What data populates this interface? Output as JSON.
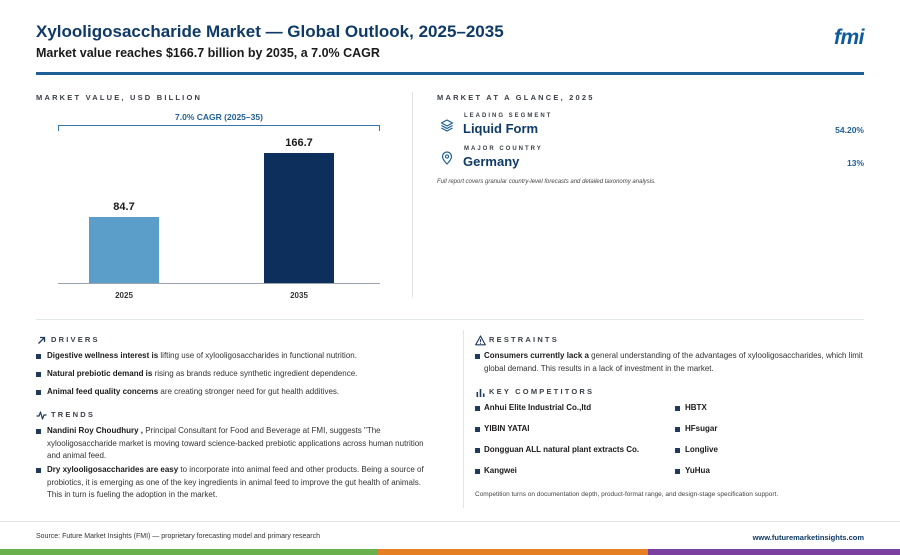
{
  "header": {
    "title": "Xylooligosaccharide Market — Global Outlook, 2025–2035",
    "subtitle": "Market value reaches $166.7 billion by 2035, a 7.0% CAGR",
    "logo": "fmi"
  },
  "chart_section": {
    "label": "MARKET VALUE, USD BILLION",
    "cagr_label": "7.0% CAGR (2025–35)"
  },
  "chart_data": {
    "type": "bar",
    "categories": [
      "2025",
      "2035"
    ],
    "values": [
      84.7,
      166.7
    ],
    "value_labels": [
      "84.7",
      "166.7"
    ],
    "title": "",
    "xlabel": "",
    "ylabel": "",
    "ylim": [
      0,
      180
    ],
    "colors": [
      "#5b9ec9",
      "#0c2f5c"
    ],
    "grid": false
  },
  "glance": {
    "label": "MARKET AT A GLANCE, 2025",
    "items": [
      {
        "kicker": "LEADING SEGMENT",
        "name": "Liquid Form",
        "value": "54.20%",
        "icon": "layers-icon"
      },
      {
        "kicker": "MAJOR COUNTRY",
        "name": "Germany",
        "value": "13%",
        "icon": "location-pin-icon"
      }
    ],
    "note": "Full report covers granular country-level forecasts and detailed taxonomy analysis."
  },
  "drivers": {
    "label": "DRIVERS",
    "items": [
      {
        "bold": "Digestive wellness interest is",
        "text": " lifting use of xylooligosaccharides in functional nutrition."
      },
      {
        "bold": "Natural prebiotic demand is",
        "text": " rising as brands reduce synthetic ingredient dependence."
      },
      {
        "bold": "Animal feed quality concerns",
        "text": " are creating stronger need for gut health additives."
      }
    ]
  },
  "trends": {
    "label": "TRENDS",
    "items": [
      {
        "bold": "Nandini Roy Choudhury ,",
        "text": " Principal Consultant for Food and Beverage at FMI, suggests \"The xylooligosaccharide market is moving toward science-backed prebiotic applications across human nutrition and animal feed."
      },
      {
        "bold": "Dry xylooligosaccharides are easy",
        "text": " to incorporate into animal feed and other products. Being a source of probiotics, it is emerging as one of the key ingredients in animal feed to improve the gut health of animals. This in turn is fueling the adoption in the market."
      }
    ]
  },
  "restraints": {
    "label": "RESTRAINTS",
    "items": [
      {
        "bold": "Consumers currently lack a",
        "text": " general understanding of the advantages of xylooligosaccharides, which limit global demand. This results in a lack of investment in the market."
      }
    ]
  },
  "competitors": {
    "label": "KEY COMPETITORS",
    "left": [
      "Anhui Elite Industrial Co.,ltd",
      "YIBIN YATAI",
      "Dongguan ALL natural plant extracts Co.",
      "Kangwei"
    ],
    "right": [
      "HBTX",
      "HFsugar",
      "Longlive",
      "YuHua"
    ],
    "note": "Competition turns on documentation depth, product-format range, and design-stage specification support."
  },
  "footer": {
    "source": "Source: Future Market Insights (FMI) — proprietary forecasting model and primary research",
    "url": "www.futuremarketinsights.com",
    "stripe_colors": [
      "#6ab04c",
      "#e67e22",
      "#7b3fa0"
    ]
  }
}
